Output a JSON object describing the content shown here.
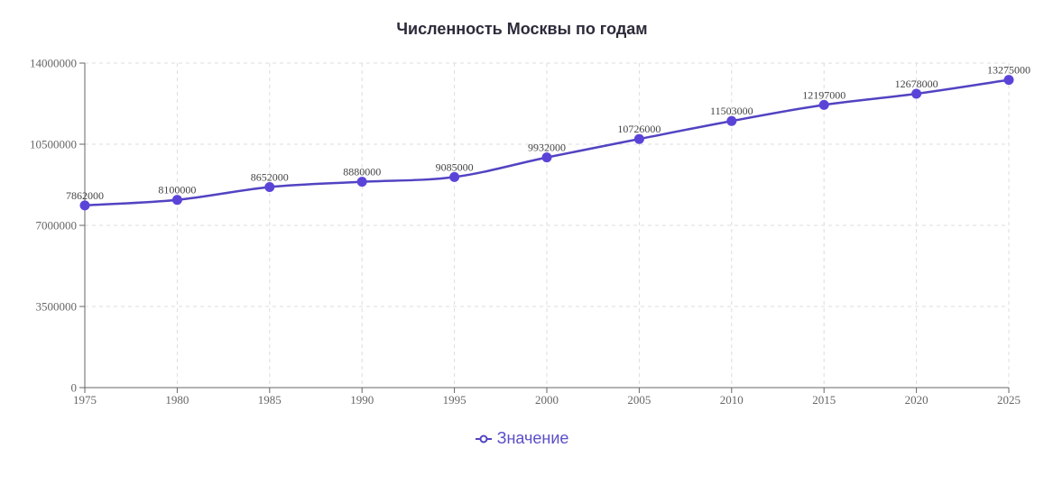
{
  "chart_data": {
    "type": "line",
    "title": "Численность Москвы по годам",
    "xlabel": "",
    "ylabel": "",
    "x": [
      1975,
      1980,
      1985,
      1990,
      1995,
      2000,
      2005,
      2010,
      2015,
      2020,
      2025
    ],
    "xlim": [
      1975,
      2025
    ],
    "ylim": [
      0,
      14000000
    ],
    "y_ticks": [
      "0",
      "3500000",
      "7000000",
      "10500000",
      "14000000"
    ],
    "x_ticks": [
      "1975",
      "1980",
      "1985",
      "1990",
      "1995",
      "2000",
      "2005",
      "2010",
      "2015",
      "2020",
      "2025"
    ],
    "series": [
      {
        "name": "Значение",
        "values": [
          7862000,
          8100000,
          8652000,
          8880000,
          9085000,
          9932000,
          10726000,
          11503000,
          12197000,
          12678000,
          13275000
        ],
        "labels": [
          "7862000",
          "8100000",
          "8652000",
          "8880000",
          "9085000",
          "9932000",
          "10726000",
          "11503000",
          "12197000",
          "12678000",
          "13275000"
        ]
      }
    ],
    "grid": true,
    "legend_position": "bottom",
    "colors": {
      "series": "#5243c2",
      "marker": "#5a44d8",
      "axis": "#666666",
      "grid": "#dddddd",
      "legend_text": "#5a4fc8"
    }
  }
}
